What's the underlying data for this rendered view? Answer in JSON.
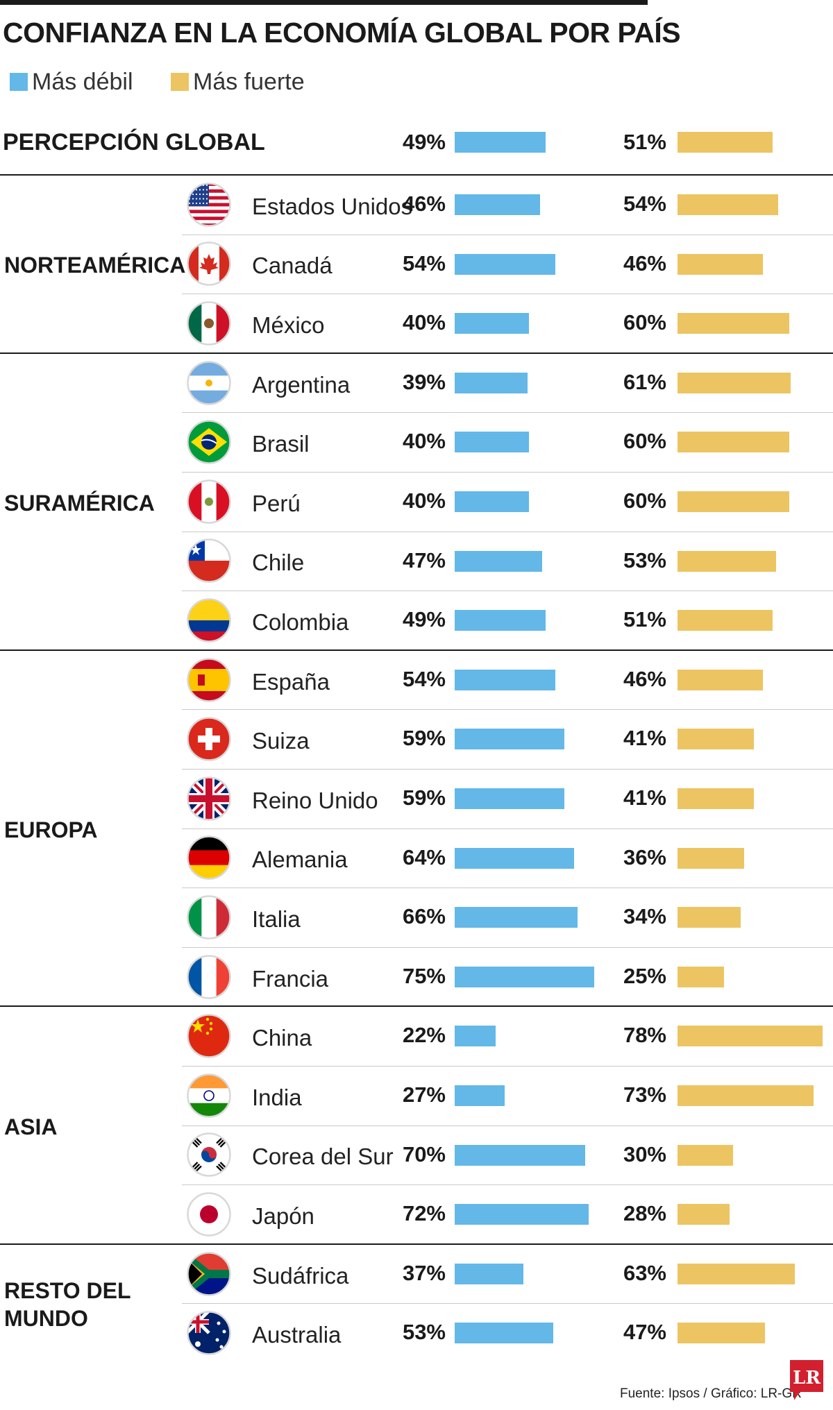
{
  "title": "CONFIANZA EN LA ECONOMÍA GLOBAL POR PAÍS",
  "legend": {
    "weak": "Más débil",
    "strong": "Más fuerte"
  },
  "colors": {
    "weak": "#63b8e8",
    "strong": "#ecc562",
    "text": "#1a1a1a"
  },
  "global": {
    "label": "PERCEPCIÓN GLOBAL",
    "weak": "49%",
    "strong": "51%"
  },
  "source": "Fuente: Ipsos / Gráfico: LR-GR",
  "logo": "LR",
  "chart_data": {
    "type": "bar",
    "title": "CONFIANZA EN LA ECONOMÍA GLOBAL POR PAÍS",
    "series_names": [
      "Más débil",
      "Más fuerte"
    ],
    "units": "%",
    "global": {
      "weak": 49,
      "strong": 51
    },
    "groups": [
      {
        "region": "NORTEAMÉRICA",
        "countries": [
          {
            "name": "Estados Unidos",
            "flag": "us-flag-icon",
            "weak": 46,
            "strong": 54
          },
          {
            "name": "Canadá",
            "flag": "canada-flag-icon",
            "weak": 54,
            "strong": 46
          },
          {
            "name": "México",
            "flag": "mexico-flag-icon",
            "weak": 40,
            "strong": 60
          }
        ]
      },
      {
        "region": "SURAMÉRICA",
        "countries": [
          {
            "name": "Argentina",
            "flag": "argentina-flag-icon",
            "weak": 39,
            "strong": 61
          },
          {
            "name": "Brasil",
            "flag": "brazil-flag-icon",
            "weak": 40,
            "strong": 60
          },
          {
            "name": "Perú",
            "flag": "peru-flag-icon",
            "weak": 40,
            "strong": 60
          },
          {
            "name": "Chile",
            "flag": "chile-flag-icon",
            "weak": 47,
            "strong": 53
          },
          {
            "name": "Colombia",
            "flag": "colombia-flag-icon",
            "weak": 49,
            "strong": 51
          }
        ]
      },
      {
        "region": "EUROPA",
        "countries": [
          {
            "name": "España",
            "flag": "spain-flag-icon",
            "weak": 54,
            "strong": 46
          },
          {
            "name": "Suiza",
            "flag": "switzerland-flag-icon",
            "weak": 59,
            "strong": 41
          },
          {
            "name": "Reino Unido",
            "flag": "uk-flag-icon",
            "weak": 59,
            "strong": 41
          },
          {
            "name": "Alemania",
            "flag": "germany-flag-icon",
            "weak": 64,
            "strong": 36
          },
          {
            "name": "Italia",
            "flag": "italy-flag-icon",
            "weak": 66,
            "strong": 34
          },
          {
            "name": "Francia",
            "flag": "france-flag-icon",
            "weak": 75,
            "strong": 25
          }
        ]
      },
      {
        "region": "ASIA",
        "countries": [
          {
            "name": "China",
            "flag": "china-flag-icon",
            "weak": 22,
            "strong": 78
          },
          {
            "name": "India",
            "flag": "india-flag-icon",
            "weak": 27,
            "strong": 73
          },
          {
            "name": "Corea del Sur",
            "flag": "south-korea-flag-icon",
            "weak": 70,
            "strong": 30
          },
          {
            "name": "Japón",
            "flag": "japan-flag-icon",
            "weak": 72,
            "strong": 28
          }
        ]
      },
      {
        "region": "RESTO DEL\nMUNDO",
        "countries": [
          {
            "name": "Sudáfrica",
            "flag": "south-africa-flag-icon",
            "weak": 37,
            "strong": 63
          },
          {
            "name": "Australia",
            "flag": "australia-flag-icon",
            "weak": 53,
            "strong": 47
          }
        ]
      }
    ]
  }
}
